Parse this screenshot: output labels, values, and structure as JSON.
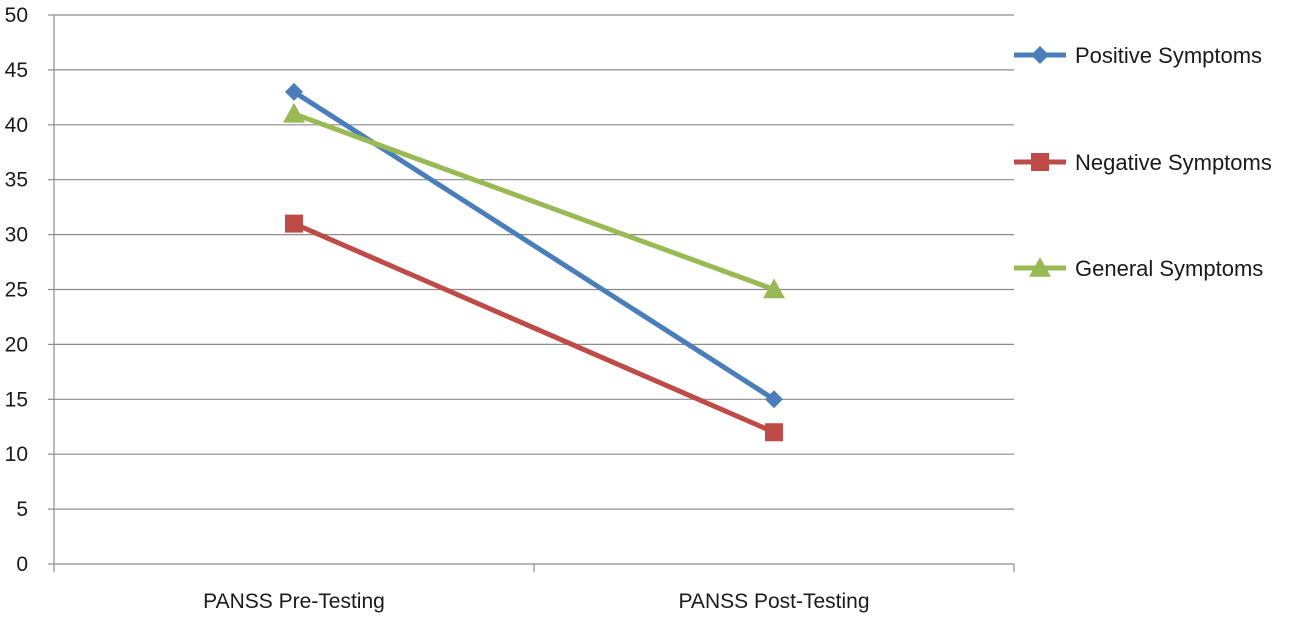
{
  "chart_data": {
    "type": "line",
    "title": "",
    "xlabel": "",
    "ylabel": "",
    "categories": [
      "PANSS Pre-Testing",
      "PANSS Post-Testing"
    ],
    "ylim": [
      0,
      50
    ],
    "yticks": [
      0,
      5,
      10,
      15,
      20,
      25,
      30,
      35,
      40,
      45,
      50
    ],
    "grid": true,
    "legend_position": "right",
    "series": [
      {
        "name": "Positive Symptoms",
        "values": [
          43,
          15
        ],
        "color": "#4a7ebb",
        "marker": "diamond"
      },
      {
        "name": "Negative Symptoms",
        "values": [
          31,
          12
        ],
        "color": "#be4b48",
        "marker": "square"
      },
      {
        "name": "General Symptoms",
        "values": [
          41,
          25
        ],
        "color": "#98b954",
        "marker": "triangle"
      }
    ]
  }
}
